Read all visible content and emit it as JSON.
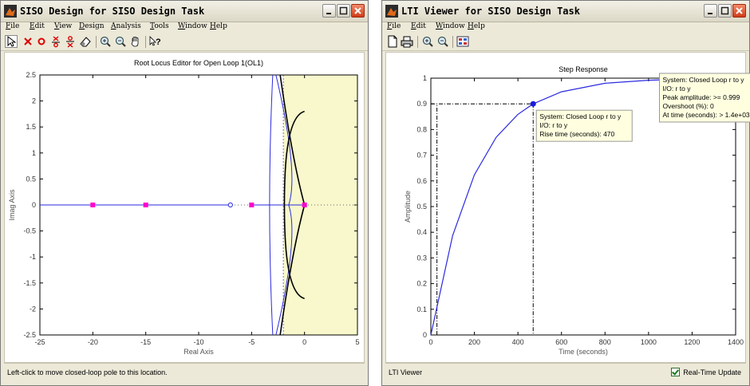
{
  "left_window": {
    "title": "SISO Design for SISO Design Task",
    "menus": [
      "File",
      "Edit",
      "View",
      "Design",
      "Analysis",
      "Tools",
      "Window",
      "Help"
    ],
    "toolbar_icons": [
      "pointer-icon",
      "add-pole-icon",
      "add-zero-icon",
      "add-lead-icon",
      "add-lag-icon",
      "eraser-icon",
      "zoom-in-icon",
      "zoom-out-icon",
      "pan-hand-icon",
      "whats-this-icon"
    ],
    "plot": {
      "title": "Root Locus Editor for Open Loop 1(OL1)",
      "xlabel": "Real Axis",
      "ylabel": "Imag Axis",
      "xticks": [
        "-25",
        "-20",
        "-15",
        "-10",
        "-5",
        "0",
        "5"
      ],
      "yticks": [
        "2.5",
        "2",
        "1.5",
        "1",
        "0.5",
        "0",
        "-0.5",
        "-1",
        "-1.5",
        "-2",
        "-2.5"
      ]
    },
    "status": "Left-click to move closed-loop pole to this location."
  },
  "right_window": {
    "title": "LTI Viewer for SISO Design Task",
    "menus": [
      "File",
      "Edit",
      "Window",
      "Help"
    ],
    "toolbar_icons": [
      "new-file-icon",
      "print-icon",
      "zoom-in-icon",
      "zoom-out-icon",
      "plot-config-icon"
    ],
    "plot": {
      "title": "Step Response",
      "xlabel": "Time (seconds)",
      "ylabel": "Amplitude",
      "xticks": [
        "0",
        "200",
        "400",
        "600",
        "800",
        "1000",
        "1200",
        "1400"
      ],
      "yticks": [
        "1",
        "0.9",
        "0.8",
        "0.7",
        "0.6",
        "0.5",
        "0.4",
        "0.3",
        "0.2",
        "0.1",
        "0"
      ]
    },
    "tooltip_rise": [
      "System: Closed Loop r to y",
      "I/O: r to y",
      "Rise time (seconds): 470"
    ],
    "tooltip_peak": [
      "System: Closed Loop r to y",
      "I/O: r to y",
      "Peak amplitude: >= 0.999",
      "Overshoot (%): 0",
      "At time (seconds): > 1.4e+03"
    ],
    "status": "LTI Viewer",
    "realtime_label": "Real-Time Update",
    "realtime_checked": true
  },
  "chart_data": [
    {
      "type": "scatter",
      "title": "Root Locus Editor for Open Loop 1(OL1)",
      "xlabel": "Real Axis",
      "ylabel": "Imag Axis",
      "xlim": [
        -25,
        5
      ],
      "ylim": [
        -2.5,
        2.5
      ],
      "poles_closed_loop": [
        [
          -20,
          0
        ],
        [
          -15,
          0
        ],
        [
          -5,
          0
        ],
        [
          0,
          0
        ]
      ],
      "zeros": [
        [
          -7,
          0
        ]
      ],
      "grid": false
    },
    {
      "type": "line",
      "title": "Step Response",
      "xlabel": "Time (seconds)",
      "ylabel": "Amplitude",
      "xlim": [
        0,
        1400
      ],
      "ylim": [
        0,
        1
      ],
      "series": [
        {
          "values_x": [
            0,
            100,
            200,
            300,
            400,
            470,
            600,
            800,
            1000,
            1200,
            1400
          ],
          "values_y": [
            0,
            0.387,
            0.624,
            0.77,
            0.859,
            0.9,
            0.947,
            0.98,
            0.992,
            0.997,
            0.999
          ]
        }
      ],
      "rise_marker": {
        "x": 470,
        "y": 0.9
      },
      "peak_marker": {
        "x": 1400,
        "y": 0.999
      },
      "grid": false
    }
  ]
}
